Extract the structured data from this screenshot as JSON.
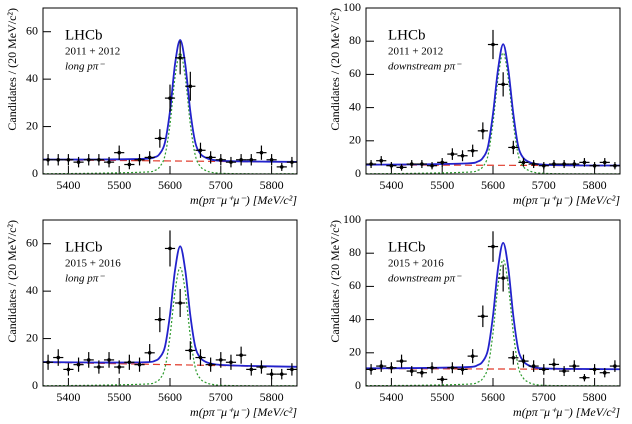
{
  "chart_data": [
    {
      "type": "errorbar",
      "title": "LHCb",
      "subtitle": "2011 + 2012",
      "annotation": "long pπ⁻",
      "x_label": "m(pπ⁻μ⁺μ⁻) [MeV/c²]",
      "y_label": "Candidates / (20 MeV/c²)",
      "xlim": [
        5350,
        5850
      ],
      "xticks": [
        5400,
        5500,
        5600,
        5700,
        5800
      ],
      "ylim": [
        0,
        70
      ],
      "yticks": [
        0,
        20,
        40,
        60
      ],
      "color": "#000000",
      "x": [
        5360,
        5380,
        5400,
        5420,
        5440,
        5460,
        5480,
        5500,
        5520,
        5540,
        5560,
        5580,
        5600,
        5620,
        5640,
        5660,
        5680,
        5700,
        5720,
        5740,
        5760,
        5780,
        5800,
        5820,
        5840
      ],
      "values": [
        6,
        6,
        6,
        5,
        6,
        6,
        5,
        9,
        4,
        6,
        7,
        15,
        32,
        49,
        37,
        10,
        7,
        6,
        5,
        6,
        6,
        9,
        6,
        3,
        5
      ],
      "errors": [
        2.4,
        2.4,
        2.4,
        2.2,
        2.4,
        2.4,
        2.2,
        3,
        2,
        2.4,
        2.6,
        3.9,
        5.7,
        7,
        6.1,
        3.2,
        2.6,
        2.4,
        2.2,
        2.4,
        2.4,
        3,
        2.4,
        1.7,
        2.2
      ],
      "curves": [
        {
          "style": "dashed",
          "color": "#e03a2a",
          "x": [
            5350,
            5850
          ],
          "values": [
            6,
            5
          ]
        },
        {
          "style": "dotted",
          "color": "#2e9a2e",
          "x": [
            5350,
            5450,
            5550,
            5570,
            5580,
            5590,
            5600,
            5610,
            5620,
            5630,
            5640,
            5650,
            5660,
            5670,
            5680,
            5700,
            5750,
            5850
          ],
          "values": [
            0.1,
            0.3,
            0.8,
            1.5,
            3.1,
            7.7,
            21,
            41,
            51,
            41,
            21,
            7.7,
            3.1,
            1.5,
            0.8,
            0.3,
            0.1,
            0.1
          ]
        },
        {
          "style": "solid",
          "color": "#2222cc",
          "x": [
            5350,
            5450,
            5550,
            5570,
            5580,
            5590,
            5600,
            5610,
            5620,
            5630,
            5640,
            5650,
            5660,
            5670,
            5680,
            5700,
            5750,
            5850
          ],
          "values": [
            6.1,
            6.1,
            6.4,
            7.1,
            8.6,
            13.2,
            26.5,
            46.5,
            56.5,
            46.4,
            26.4,
            13.1,
            8.5,
            6.9,
            6.1,
            5.6,
            5.3,
            5.1
          ]
        }
      ]
    },
    {
      "type": "errorbar",
      "title": "LHCb",
      "subtitle": "2011 + 2012",
      "annotation": "downstream pπ⁻",
      "x_label": "m(pπ⁻μ⁺μ⁻) [MeV/c²]",
      "y_label": "Candidates / (20 MeV/c²)",
      "xlim": [
        5350,
        5850
      ],
      "xticks": [
        5400,
        5500,
        5600,
        5700,
        5800
      ],
      "ylim": [
        0,
        100
      ],
      "yticks": [
        0,
        20,
        40,
        60,
        80,
        100
      ],
      "color": "#000000",
      "x": [
        5360,
        5380,
        5400,
        5420,
        5440,
        5460,
        5480,
        5500,
        5520,
        5540,
        5560,
        5580,
        5600,
        5620,
        5640,
        5660,
        5680,
        5700,
        5720,
        5740,
        5760,
        5780,
        5800,
        5820,
        5840
      ],
      "values": [
        6,
        8,
        5,
        4,
        6,
        6,
        5,
        7,
        12,
        11,
        14,
        26,
        78,
        54,
        16,
        7,
        6,
        5,
        6,
        6,
        6,
        7,
        5,
        7,
        5
      ],
      "errors": [
        2.4,
        2.8,
        2.2,
        2,
        2.4,
        2.4,
        2.2,
        2.6,
        3.5,
        3.3,
        3.7,
        5.1,
        8.8,
        7.3,
        4,
        2.6,
        2.4,
        2.2,
        2.4,
        2.4,
        2.4,
        2.6,
        2.2,
        2.6,
        2.2
      ],
      "curves": [
        {
          "style": "dashed",
          "color": "#e03a2a",
          "x": [
            5350,
            5850
          ],
          "values": [
            5.5,
            5
          ]
        },
        {
          "style": "dotted",
          "color": "#2e9a2e",
          "x": [
            5350,
            5450,
            5550,
            5570,
            5580,
            5590,
            5600,
            5610,
            5620,
            5630,
            5640,
            5650,
            5660,
            5670,
            5680,
            5700,
            5750,
            5850
          ],
          "values": [
            0.1,
            0.4,
            1.1,
            2.2,
            4.4,
            11,
            31,
            58,
            73,
            58,
            31,
            11,
            4.4,
            2.2,
            1.1,
            0.4,
            0.1,
            0.1
          ]
        },
        {
          "style": "solid",
          "color": "#2222cc",
          "x": [
            5350,
            5450,
            5550,
            5570,
            5580,
            5590,
            5600,
            5610,
            5620,
            5630,
            5640,
            5650,
            5660,
            5670,
            5680,
            5700,
            5750,
            5850
          ],
          "values": [
            5.6,
            5.8,
            6.4,
            7.5,
            9.7,
            16.3,
            36.3,
            63.2,
            78.2,
            63.2,
            36.2,
            16.2,
            9.6,
            7.4,
            6.3,
            5.6,
            5.2,
            5.1
          ]
        }
      ]
    },
    {
      "type": "errorbar",
      "title": "LHCb",
      "subtitle": "2015 + 2016",
      "annotation": "long pπ⁻",
      "x_label": "m(pπ⁻μ⁺μ⁻) [MeV/c²]",
      "y_label": "Candidates / (20 MeV/c²)",
      "xlim": [
        5350,
        5850
      ],
      "xticks": [
        5400,
        5500,
        5600,
        5700,
        5800
      ],
      "ylim": [
        0,
        70
      ],
      "yticks": [
        0,
        20,
        40,
        60
      ],
      "color": "#000000",
      "x": [
        5360,
        5380,
        5400,
        5420,
        5440,
        5460,
        5480,
        5500,
        5520,
        5540,
        5560,
        5580,
        5600,
        5620,
        5640,
        5660,
        5680,
        5700,
        5720,
        5740,
        5760,
        5780,
        5800,
        5820,
        5840
      ],
      "values": [
        10,
        12,
        7,
        9,
        11,
        8,
        11,
        8,
        10,
        9,
        14,
        28,
        58,
        35,
        15,
        12,
        9,
        11,
        10,
        13,
        7,
        8,
        5,
        5,
        7
      ],
      "errors": [
        3.2,
        3.5,
        2.6,
        3,
        3.3,
        2.8,
        3.3,
        2.8,
        3.2,
        3,
        3.7,
        5.3,
        7.6,
        5.9,
        3.9,
        3.5,
        3,
        3.3,
        3.2,
        3.6,
        2.6,
        2.8,
        2.2,
        2.2,
        2.6
      ],
      "curves": [
        {
          "style": "dashed",
          "color": "#e03a2a",
          "x": [
            5350,
            5850
          ],
          "values": [
            10,
            8
          ]
        },
        {
          "style": "dotted",
          "color": "#2e9a2e",
          "x": [
            5350,
            5450,
            5550,
            5570,
            5580,
            5590,
            5600,
            5610,
            5620,
            5630,
            5640,
            5650,
            5660,
            5670,
            5680,
            5700,
            5750,
            5850
          ],
          "values": [
            0.1,
            0.3,
            0.8,
            1.5,
            3,
            7.5,
            21,
            40,
            50,
            40,
            21,
            7.5,
            3,
            1.5,
            0.8,
            0.3,
            0.1,
            0.1
          ]
        },
        {
          "style": "solid",
          "color": "#2222cc",
          "x": [
            5350,
            5450,
            5550,
            5570,
            5580,
            5590,
            5600,
            5610,
            5620,
            5630,
            5640,
            5650,
            5660,
            5670,
            5680,
            5700,
            5750,
            5850
          ],
          "values": [
            10.1,
            9.9,
            10,
            10.6,
            12.1,
            16.5,
            30,
            49,
            58.9,
            48.9,
            29.8,
            16.3,
            11.8,
            10.2,
            9.5,
            8.9,
            8.5,
            8.1
          ]
        }
      ]
    },
    {
      "type": "errorbar",
      "title": "LHCb",
      "subtitle": "2015 + 2016",
      "annotation": "downstream pπ⁻",
      "x_label": "m(pπ⁻μ⁺μ⁻) [MeV/c²]",
      "y_label": "Candidates / (20 MeV/c²)",
      "xlim": [
        5350,
        5850
      ],
      "xticks": [
        5400,
        5500,
        5600,
        5700,
        5800
      ],
      "ylim": [
        0,
        100
      ],
      "yticks": [
        0,
        20,
        40,
        60,
        80,
        100
      ],
      "color": "#000000",
      "x": [
        5360,
        5380,
        5400,
        5420,
        5440,
        5460,
        5480,
        5500,
        5520,
        5540,
        5560,
        5580,
        5600,
        5620,
        5640,
        5660,
        5680,
        5700,
        5720,
        5740,
        5760,
        5780,
        5800,
        5820,
        5840
      ],
      "values": [
        10,
        12,
        11,
        15,
        9,
        8,
        11,
        4,
        11,
        10,
        18,
        42,
        84,
        65,
        17,
        15,
        12,
        10,
        13,
        9,
        12,
        5,
        10,
        8,
        12
      ],
      "errors": [
        3.2,
        3.5,
        3.3,
        3.9,
        3,
        2.8,
        3.3,
        2,
        3.3,
        3.2,
        4.2,
        6.5,
        9.2,
        8.1,
        4.1,
        3.9,
        3.5,
        3.2,
        3.6,
        3,
        3.5,
        2.2,
        3.2,
        2.8,
        3.5
      ],
      "curves": [
        {
          "style": "dashed",
          "color": "#e03a2a",
          "x": [
            5350,
            5850
          ],
          "values": [
            10.5,
            10
          ]
        },
        {
          "style": "dotted",
          "color": "#2e9a2e",
          "x": [
            5350,
            5450,
            5550,
            5570,
            5580,
            5590,
            5600,
            5610,
            5620,
            5630,
            5640,
            5650,
            5660,
            5670,
            5680,
            5700,
            5750,
            5850
          ],
          "values": [
            0.2,
            0.4,
            1.1,
            2.3,
            4.6,
            11.4,
            32,
            61,
            76,
            61,
            32,
            11.4,
            4.6,
            2.3,
            1.1,
            0.4,
            0.2,
            0.1
          ]
        },
        {
          "style": "solid",
          "color": "#2222cc",
          "x": [
            5350,
            5450,
            5550,
            5570,
            5580,
            5590,
            5600,
            5610,
            5620,
            5630,
            5640,
            5650,
            5660,
            5670,
            5680,
            5700,
            5750,
            5850
          ],
          "values": [
            10.7,
            10.8,
            11.4,
            12.6,
            14.9,
            21.7,
            42.3,
            71.2,
            86.2,
            71.2,
            42.2,
            21.6,
            14.8,
            12.5,
            11.3,
            10.6,
            10.3,
            10.1
          ]
        }
      ]
    }
  ]
}
